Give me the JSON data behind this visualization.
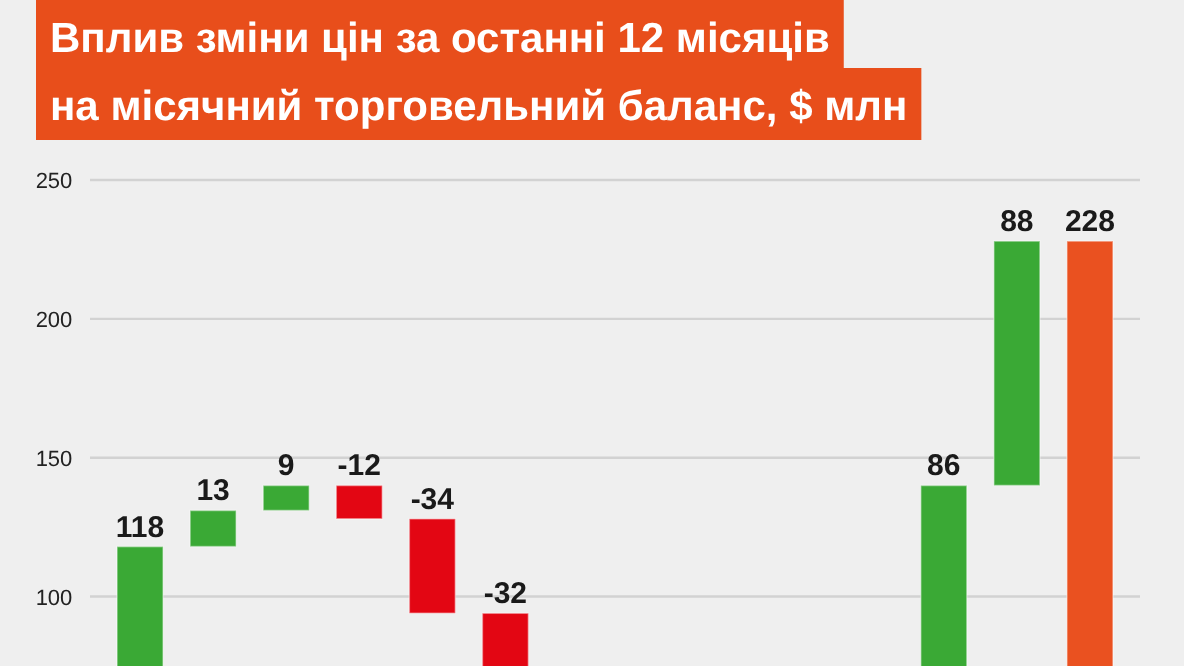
{
  "chart_data": {
    "type": "bar",
    "title": "Вплив зміни цін за останні 12 місяців\nна місячний торговельний баланс, $ млн",
    "categories": [
      null,
      null,
      null,
      null,
      null,
      null,
      null,
      null,
      null,
      null,
      null,
      null,
      null,
      null
    ],
    "values": [
      118,
      13,
      9,
      -12,
      -34,
      -32,
      null,
      null,
      null,
      null,
      null,
      86,
      88,
      228
    ],
    "base": [
      null,
      118,
      131,
      140,
      128,
      94,
      null,
      null,
      null,
      null,
      null,
      54,
      140,
      null
    ],
    "colors": [
      "#3aa935",
      "#3aa935",
      "#3aa935",
      "#e30613",
      "#e30613",
      "#e30613",
      null,
      null,
      null,
      null,
      null,
      "#3aa935",
      "#3aa935",
      "#ea5120"
    ],
    "ylim": [
      75,
      250
    ],
    "yticks": [
      100,
      150,
      200,
      250
    ],
    "grid": "y",
    "tick_labels": "y",
    "data_labels": true
  }
}
